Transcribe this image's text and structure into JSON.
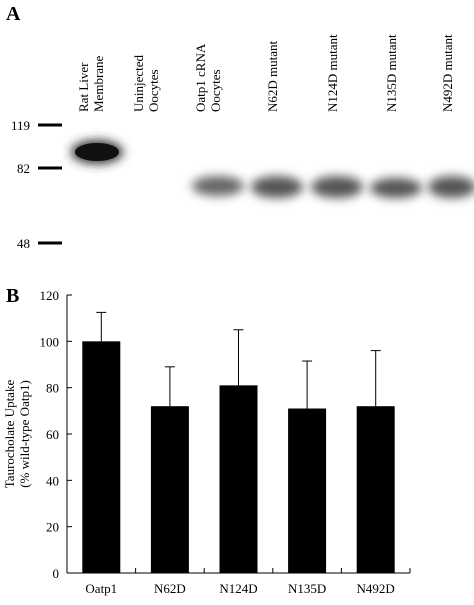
{
  "blot": {
    "panel_label": "A",
    "lanes": [
      [
        "Rat Liver",
        "Membrane"
      ],
      [
        "Uninjected",
        "Oocytes"
      ],
      [
        "Oatp1 cRNA",
        "Oocytes"
      ],
      [
        "N62D mutant"
      ],
      [
        "N124D mutant"
      ],
      [
        "N135D mutant"
      ],
      [
        "N492D mutant"
      ]
    ],
    "markers": [
      "119",
      "82",
      "48"
    ]
  },
  "chart_data": {
    "type": "bar",
    "panel_label": "B",
    "ylabel": [
      "Taurocholate Uptake",
      "(% wild-type Oatp1)"
    ],
    "categories": [
      "Oatp1",
      "N62D",
      "N124D",
      "N135D",
      "N492D"
    ],
    "values": [
      100,
      72,
      81,
      71,
      72
    ],
    "errors": [
      12.5,
      17,
      24,
      20.5,
      24
    ],
    "color": "#000000",
    "ylim": [
      0,
      120
    ],
    "yticks": [
      0,
      20,
      40,
      60,
      80,
      100,
      120
    ]
  }
}
